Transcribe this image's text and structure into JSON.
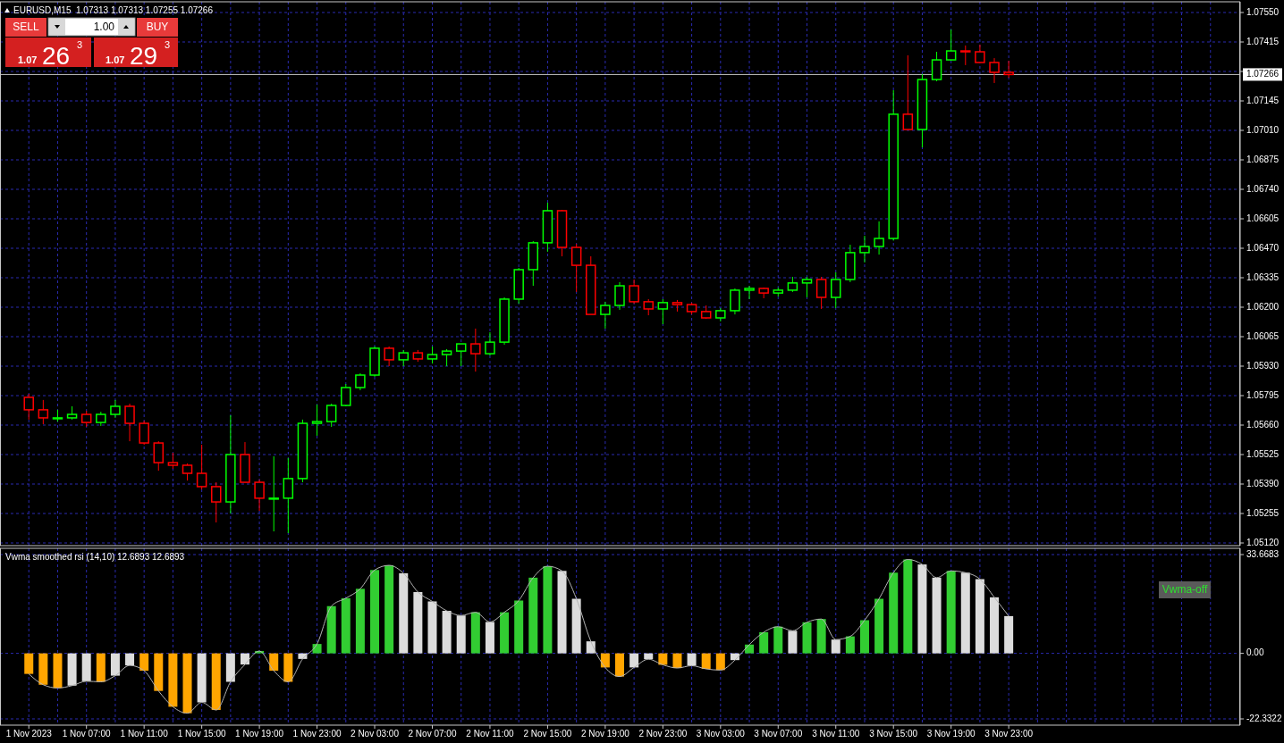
{
  "chart_data": [
    {
      "type": "candlestick",
      "title": "EURUSD,M15  1.07313 1.07313 1.07255 1.07266",
      "tick_labels": "y",
      "grid": true,
      "annotations": [
        "SELL",
        "1.00",
        "BUY",
        "1.07",
        "26",
        "3",
        "1.07",
        "29",
        "3"
      ],
      "xlim": [
        "2023-11-01T01:00",
        "2023-11-04T15:00"
      ],
      "xticks": [
        "2023-11-01T03:00",
        "2023-11-01T05:00",
        "2023-11-01T07:00",
        "2023-11-01T09:00",
        "2023-11-01T11:00",
        "2023-11-01T13:00",
        "2023-11-01T15:00",
        "2023-11-01T17:00",
        "2023-11-01T19:00",
        "2023-11-01T21:00",
        "2023-11-01T23:00",
        "2023-11-02T01:00",
        "2023-11-02T03:00",
        "2023-11-02T05:00",
        "2023-11-02T07:00",
        "2023-11-02T09:00",
        "2023-11-02T11:00",
        "2023-11-02T13:00",
        "2023-11-02T15:00",
        "2023-11-02T17:00",
        "2023-11-02T19:00",
        "2023-11-02T21:00",
        "2023-11-02T23:00",
        "2023-11-03T01:00",
        "2023-11-03T03:00",
        "2023-11-03T05:00",
        "2023-11-03T07:00",
        "2023-11-03T09:00",
        "2023-11-03T11:00",
        "2023-11-03T13:00",
        "2023-11-03T15:00",
        "2023-11-03T17:00",
        "2023-11-03T19:00",
        "2023-11-03T21:00",
        "2023-11-03T23:00",
        "2023-11-04T01:00",
        "2023-11-04T03:00",
        "2023-11-04T05:00",
        "2023-11-04T07:00",
        "2023-11-04T09:00",
        "2023-11-04T11:00",
        "2023-11-04T13:00"
      ],
      "ylim": [
        1.0512,
        1.0755
      ],
      "yticks": [
        {
          "value": 1.0512,
          "label": "1.05120"
        },
        {
          "value": 1.05255,
          "label": "1.05255"
        },
        {
          "value": 1.0539,
          "label": "1.05390"
        },
        {
          "value": 1.05525,
          "label": "1.05525"
        },
        {
          "value": 1.0566,
          "label": "1.05660"
        },
        {
          "value": 1.05795,
          "label": "1.05795"
        },
        {
          "value": 1.0593,
          "label": "1.05930"
        },
        {
          "value": 1.06065,
          "label": "1.06065"
        },
        {
          "value": 1.062,
          "label": "1.06200"
        },
        {
          "value": 1.06335,
          "label": "1.06335"
        },
        {
          "value": 1.0647,
          "label": "1.06470"
        },
        {
          "value": 1.06605,
          "label": "1.06605"
        },
        {
          "value": 1.0674,
          "label": "1.06740"
        },
        {
          "value": 1.06875,
          "label": "1.06875"
        },
        {
          "value": 1.0701,
          "label": "1.07010"
        },
        {
          "value": 1.07145,
          "label": "1.07145"
        },
        {
          "value": 1.0728,
          "label": null
        },
        {
          "value": 1.07415,
          "label": "1.07415"
        },
        {
          "value": 1.0755,
          "label": "1.07550"
        }
      ],
      "ref_lines": [
        {
          "axis": "y",
          "value": 1.07266,
          "label": "1.07266",
          "color": "#c0c0c0"
        }
      ],
      "x": [
        "2023-11-01T03:00",
        "2023-11-01T04:00",
        "2023-11-01T05:00",
        "2023-11-01T06:00",
        "2023-11-01T07:00",
        "2023-11-01T08:00",
        "2023-11-01T09:00",
        "2023-11-01T10:00",
        "2023-11-01T11:00",
        "2023-11-01T12:00",
        "2023-11-01T13:00",
        "2023-11-01T14:00",
        "2023-11-01T15:00",
        "2023-11-01T16:00",
        "2023-11-01T17:00",
        "2023-11-01T18:00",
        "2023-11-01T19:00",
        "2023-11-01T20:00",
        "2023-11-01T21:00",
        "2023-11-01T22:00",
        "2023-11-01T23:00",
        "2023-11-02T00:00",
        "2023-11-02T01:00",
        "2023-11-02T02:00",
        "2023-11-02T03:00",
        "2023-11-02T04:00",
        "2023-11-02T05:00",
        "2023-11-02T06:00",
        "2023-11-02T07:00",
        "2023-11-02T08:00",
        "2023-11-02T09:00",
        "2023-11-02T10:00",
        "2023-11-02T11:00",
        "2023-11-02T12:00",
        "2023-11-02T13:00",
        "2023-11-02T14:00",
        "2023-11-02T15:00",
        "2023-11-02T16:00",
        "2023-11-02T17:00",
        "2023-11-02T18:00",
        "2023-11-02T19:00",
        "2023-11-02T20:00",
        "2023-11-02T21:00",
        "2023-11-02T22:00",
        "2023-11-02T23:00",
        "2023-11-03T00:00",
        "2023-11-03T01:00",
        "2023-11-03T02:00",
        "2023-11-03T03:00",
        "2023-11-03T04:00",
        "2023-11-03T05:00",
        "2023-11-03T06:00",
        "2023-11-03T07:00",
        "2023-11-03T08:00",
        "2023-11-03T09:00",
        "2023-11-03T10:00",
        "2023-11-03T11:00",
        "2023-11-03T12:00",
        "2023-11-03T13:00",
        "2023-11-03T14:00",
        "2023-11-03T15:00",
        "2023-11-03T16:00",
        "2023-11-03T17:00",
        "2023-11-03T18:00",
        "2023-11-03T19:00",
        "2023-11-03T20:00",
        "2023-11-03T21:00",
        "2023-11-03T22:00",
        "2023-11-03T23:00"
      ],
      "ohlc": [
        [
          1.05787,
          1.05803,
          1.05685,
          1.0573
        ],
        [
          1.0573,
          1.05775,
          1.05664,
          1.05693
        ],
        [
          1.05693,
          1.0573,
          1.05676,
          1.05693
        ],
        [
          1.05693,
          1.05746,
          1.05685,
          1.05709
        ],
        [
          1.05709,
          1.05725,
          1.05652,
          1.05672
        ],
        [
          1.05672,
          1.05721,
          1.05656,
          1.05709
        ],
        [
          1.05709,
          1.05775,
          1.05693,
          1.05746
        ],
        [
          1.05746,
          1.05758,
          1.05586,
          1.05668
        ],
        [
          1.05668,
          1.0568,
          1.0557,
          1.05578
        ],
        [
          1.05578,
          1.05586,
          1.05451,
          1.05488
        ],
        [
          1.05488,
          1.05533,
          1.0546,
          1.05476
        ],
        [
          1.05476,
          1.05484,
          1.05406,
          1.05439
        ],
        [
          1.05439,
          1.0557,
          1.05365,
          1.05378
        ],
        [
          1.05378,
          1.05398,
          1.05214,
          1.05308
        ],
        [
          1.05308,
          1.05705,
          1.05255,
          1.05525
        ],
        [
          1.05525,
          1.05582,
          1.05398,
          1.05398
        ],
        [
          1.05398,
          1.0541,
          1.05267,
          1.05325
        ],
        [
          1.05325,
          1.05517,
          1.05173,
          1.05325
        ],
        [
          1.05325,
          1.05509,
          1.05165,
          1.05415
        ],
        [
          1.05415,
          1.05685,
          1.05398,
          1.05668
        ],
        [
          1.05668,
          1.05754,
          1.05611,
          1.05676
        ],
        [
          1.05676,
          1.05758,
          1.05652,
          1.0575
        ],
        [
          1.0575,
          1.05848,
          1.05746,
          1.05832
        ],
        [
          1.05832,
          1.05897,
          1.0582,
          1.05889
        ],
        [
          1.05889,
          1.0602,
          1.05881,
          1.06012
        ],
        [
          1.06012,
          1.0602,
          1.0593,
          1.05959
        ],
        [
          1.05959,
          1.06004,
          1.0593,
          1.05991
        ],
        [
          1.05991,
          1.06004,
          1.0595,
          1.05963
        ],
        [
          1.05963,
          1.0602,
          1.05942,
          1.05983
        ],
        [
          1.05983,
          1.06008,
          1.0593,
          1.05999
        ],
        [
          1.05999,
          1.06032,
          1.0593,
          1.06032
        ],
        [
          1.06032,
          1.06102,
          1.05905,
          1.05987
        ],
        [
          1.05987,
          1.06085,
          1.05979,
          1.0604
        ],
        [
          1.0604,
          1.06245,
          1.06028,
          1.06237
        ],
        [
          1.06237,
          1.0638,
          1.06216,
          1.06372
        ],
        [
          1.06372,
          1.06503,
          1.06298,
          1.06495
        ],
        [
          1.06495,
          1.06679,
          1.06454,
          1.06642
        ],
        [
          1.06642,
          1.06646,
          1.06433,
          1.06474
        ],
        [
          1.06474,
          1.0649,
          1.0627,
          1.06392
        ],
        [
          1.06392,
          1.06433,
          1.06167,
          1.06167
        ],
        [
          1.06167,
          1.06225,
          1.06102,
          1.06208
        ],
        [
          1.06208,
          1.06315,
          1.06188,
          1.06298
        ],
        [
          1.06298,
          1.06327,
          1.06216,
          1.06225
        ],
        [
          1.06225,
          1.06237,
          1.06163,
          1.06192
        ],
        [
          1.06192,
          1.06237,
          1.06122,
          1.06221
        ],
        [
          1.06221,
          1.06233,
          1.0618,
          1.06212
        ],
        [
          1.06212,
          1.06221,
          1.06167,
          1.0618
        ],
        [
          1.0618,
          1.06208,
          1.06147,
          1.06151
        ],
        [
          1.06151,
          1.06196,
          1.06135,
          1.06184
        ],
        [
          1.06184,
          1.06286,
          1.06167,
          1.06278
        ],
        [
          1.06278,
          1.06298,
          1.06237,
          1.06286
        ],
        [
          1.06286,
          1.0629,
          1.06241,
          1.06265
        ],
        [
          1.06265,
          1.0629,
          1.06249,
          1.06278
        ],
        [
          1.06278,
          1.06339,
          1.0627,
          1.06311
        ],
        [
          1.06311,
          1.06339,
          1.06245,
          1.06327
        ],
        [
          1.06327,
          1.06339,
          1.06192,
          1.06245
        ],
        [
          1.06245,
          1.0636,
          1.06196,
          1.06327
        ],
        [
          1.06327,
          1.06486,
          1.06315,
          1.0645
        ],
        [
          1.0645,
          1.06527,
          1.06405,
          1.06478
        ],
        [
          1.06478,
          1.06593,
          1.06441,
          1.06515
        ],
        [
          1.06515,
          1.07194,
          1.06505,
          1.07084
        ],
        [
          1.07084,
          1.07354,
          1.07014,
          1.07014
        ],
        [
          1.07014,
          1.07268,
          1.06932,
          1.07243
        ],
        [
          1.07243,
          1.0737,
          1.07235,
          1.07333
        ],
        [
          1.07333,
          1.07472,
          1.07329,
          1.07374
        ],
        [
          1.07374,
          1.07399,
          1.07309,
          1.0737
        ],
        [
          1.0737,
          1.07403,
          1.07321,
          1.07321
        ],
        [
          1.07321,
          1.07341,
          1.07227,
          1.07276
        ],
        [
          1.07276,
          1.07329,
          1.07251,
          1.07266
        ]
      ],
      "colors": [
        "#ff0000",
        "#ff0000",
        "#00ff00",
        "#00ff00",
        "#ff0000",
        "#00ff00",
        "#00ff00",
        "#ff0000",
        "#ff0000",
        "#ff0000",
        "#ff0000",
        "#ff0000",
        "#ff0000",
        "#ff0000",
        "#00ff00",
        "#ff0000",
        "#ff0000",
        "#00ff00",
        "#00ff00",
        "#00ff00",
        "#00ff00",
        "#00ff00",
        "#00ff00",
        "#00ff00",
        "#00ff00",
        "#ff0000",
        "#00ff00",
        "#ff0000",
        "#00ff00",
        "#00ff00",
        "#00ff00",
        "#ff0000",
        "#00ff00",
        "#00ff00",
        "#00ff00",
        "#00ff00",
        "#00ff00",
        "#ff0000",
        "#ff0000",
        "#ff0000",
        "#00ff00",
        "#00ff00",
        "#ff0000",
        "#ff0000",
        "#00ff00",
        "#ff0000",
        "#ff0000",
        "#ff0000",
        "#00ff00",
        "#00ff00",
        "#00ff00",
        "#ff0000",
        "#00ff00",
        "#00ff00",
        "#00ff00",
        "#ff0000",
        "#00ff00",
        "#00ff00",
        "#00ff00",
        "#00ff00",
        "#00ff00",
        "#ff0000",
        "#00ff00",
        "#00ff00",
        "#00ff00",
        "#ff0000",
        "#ff0000",
        "#ff0000",
        "#ff0000"
      ]
    },
    {
      "type": "bar",
      "title": "Vwma smoothed rsi (14,10) 12.6893 12.6893",
      "grid": true,
      "annotations": [
        "Vwma-off"
      ],
      "xlim": [
        "2023-11-01T01:00",
        "2023-11-04T15:00"
      ],
      "xticks": [
        {
          "value": "2023-11-01T03:00",
          "label": "1 Nov 2023"
        },
        {
          "value": "2023-11-01T05:00",
          "label": null
        },
        {
          "value": "2023-11-01T07:00",
          "label": "1 Nov 07:00"
        },
        {
          "value": "2023-11-01T09:00",
          "label": null
        },
        {
          "value": "2023-11-01T11:00",
          "label": "1 Nov 11:00"
        },
        {
          "value": "2023-11-01T13:00",
          "label": null
        },
        {
          "value": "2023-11-01T15:00",
          "label": "1 Nov 15:00"
        },
        {
          "value": "2023-11-01T17:00",
          "label": null
        },
        {
          "value": "2023-11-01T19:00",
          "label": "1 Nov 19:00"
        },
        {
          "value": "2023-11-01T21:00",
          "label": null
        },
        {
          "value": "2023-11-01T23:00",
          "label": "1 Nov 23:00"
        },
        {
          "value": "2023-11-02T01:00",
          "label": null
        },
        {
          "value": "2023-11-02T03:00",
          "label": "2 Nov 03:00"
        },
        {
          "value": "2023-11-02T05:00",
          "label": null
        },
        {
          "value": "2023-11-02T07:00",
          "label": "2 Nov 07:00"
        },
        {
          "value": "2023-11-02T09:00",
          "label": null
        },
        {
          "value": "2023-11-02T11:00",
          "label": "2 Nov 11:00"
        },
        {
          "value": "2023-11-02T13:00",
          "label": null
        },
        {
          "value": "2023-11-02T15:00",
          "label": "2 Nov 15:00"
        },
        {
          "value": "2023-11-02T17:00",
          "label": null
        },
        {
          "value": "2023-11-02T19:00",
          "label": "2 Nov 19:00"
        },
        {
          "value": "2023-11-02T21:00",
          "label": null
        },
        {
          "value": "2023-11-02T23:00",
          "label": "2 Nov 23:00"
        },
        {
          "value": "2023-11-03T01:00",
          "label": null
        },
        {
          "value": "2023-11-03T03:00",
          "label": "3 Nov 03:00"
        },
        {
          "value": "2023-11-03T05:00",
          "label": null
        },
        {
          "value": "2023-11-03T07:00",
          "label": "3 Nov 07:00"
        },
        {
          "value": "2023-11-03T09:00",
          "label": null
        },
        {
          "value": "2023-11-03T11:00",
          "label": "3 Nov 11:00"
        },
        {
          "value": "2023-11-03T13:00",
          "label": null
        },
        {
          "value": "2023-11-03T15:00",
          "label": "3 Nov 15:00"
        },
        {
          "value": "2023-11-03T17:00",
          "label": null
        },
        {
          "value": "2023-11-03T19:00",
          "label": "3 Nov 19:00"
        },
        {
          "value": "2023-11-03T21:00",
          "label": null
        },
        {
          "value": "2023-11-03T23:00",
          "label": "3 Nov 23:00"
        },
        {
          "value": "2023-11-04T01:00",
          "label": null
        },
        {
          "value": "2023-11-04T03:00",
          "label": null
        },
        {
          "value": "2023-11-04T05:00",
          "label": null
        },
        {
          "value": "2023-11-04T07:00",
          "label": null
        },
        {
          "value": "2023-11-04T09:00",
          "label": null
        },
        {
          "value": "2023-11-04T11:00",
          "label": null
        },
        {
          "value": "2023-11-04T13:00",
          "label": null
        }
      ],
      "ylim": [
        -22.3322,
        33.6683
      ],
      "yticks": [
        -22.3322,
        {
          "value": 0,
          "label": "0.00"
        },
        33.6683
      ],
      "x": [
        "2023-11-01T03:00",
        "2023-11-01T04:00",
        "2023-11-01T05:00",
        "2023-11-01T06:00",
        "2023-11-01T07:00",
        "2023-11-01T08:00",
        "2023-11-01T09:00",
        "2023-11-01T10:00",
        "2023-11-01T11:00",
        "2023-11-01T12:00",
        "2023-11-01T13:00",
        "2023-11-01T14:00",
        "2023-11-01T15:00",
        "2023-11-01T16:00",
        "2023-11-01T17:00",
        "2023-11-01T18:00",
        "2023-11-01T19:00",
        "2023-11-01T20:00",
        "2023-11-01T21:00",
        "2023-11-01T22:00",
        "2023-11-01T23:00",
        "2023-11-02T00:00",
        "2023-11-02T01:00",
        "2023-11-02T02:00",
        "2023-11-02T03:00",
        "2023-11-02T04:00",
        "2023-11-02T05:00",
        "2023-11-02T06:00",
        "2023-11-02T07:00",
        "2023-11-02T08:00",
        "2023-11-02T09:00",
        "2023-11-02T10:00",
        "2023-11-02T11:00",
        "2023-11-02T12:00",
        "2023-11-02T13:00",
        "2023-11-02T14:00",
        "2023-11-02T15:00",
        "2023-11-02T16:00",
        "2023-11-02T17:00",
        "2023-11-02T18:00",
        "2023-11-02T19:00",
        "2023-11-02T20:00",
        "2023-11-02T21:00",
        "2023-11-02T22:00",
        "2023-11-02T23:00",
        "2023-11-03T00:00",
        "2023-11-03T01:00",
        "2023-11-03T02:00",
        "2023-11-03T03:00",
        "2023-11-03T04:00",
        "2023-11-03T05:00",
        "2023-11-03T06:00",
        "2023-11-03T07:00",
        "2023-11-03T08:00",
        "2023-11-03T09:00",
        "2023-11-03T10:00",
        "2023-11-03T11:00",
        "2023-11-03T12:00",
        "2023-11-03T13:00",
        "2023-11-03T14:00",
        "2023-11-03T15:00",
        "2023-11-03T16:00",
        "2023-11-03T17:00",
        "2023-11-03T18:00",
        "2023-11-03T19:00",
        "2023-11-03T20:00",
        "2023-11-03T21:00",
        "2023-11-03T22:00",
        "2023-11-03T23:00"
      ],
      "series": [
        {
          "type": "bar",
          "values": [
            -7.0,
            -10.7,
            -11.8,
            -11.0,
            -9.5,
            -9.7,
            -7.6,
            -4.1,
            -5.9,
            -12.8,
            -18.2,
            -20.4,
            -16.7,
            -19.3,
            -9.7,
            -3.8,
            0.8,
            -5.9,
            -9.7,
            -1.9,
            3.2,
            16.1,
            18.8,
            22.0,
            28.4,
            30.0,
            27.3,
            20.9,
            17.7,
            14.5,
            12.9,
            14.0,
            10.7,
            14.0,
            18.0,
            25.8,
            29.7,
            28.1,
            18.6,
            4.1,
            -4.8,
            -7.9,
            -4.8,
            -2.0,
            -3.9,
            -5.0,
            -4.2,
            -5.3,
            -5.7,
            -2.3,
            3.0,
            7.2,
            9.1,
            7.7,
            10.6,
            11.7,
            4.7,
            5.8,
            11.3,
            18.6,
            27.5,
            32.0,
            30.3,
            25.8,
            28.1,
            27.5,
            25.3,
            19.1,
            12.7
          ],
          "colors": [
            "#ffa500",
            "#ffa500",
            "#ffa500",
            "#dcdcdc",
            "#dcdcdc",
            "#ffa500",
            "#dcdcdc",
            "#dcdcdc",
            "#ffa500",
            "#ffa500",
            "#ffa500",
            "#ffa500",
            "#dcdcdc",
            "#ffa500",
            "#dcdcdc",
            "#dcdcdc",
            "#32cd32",
            "#ffa500",
            "#ffa500",
            "#dcdcdc",
            "#32cd32",
            "#32cd32",
            "#32cd32",
            "#32cd32",
            "#32cd32",
            "#32cd32",
            "#dcdcdc",
            "#dcdcdc",
            "#dcdcdc",
            "#dcdcdc",
            "#dcdcdc",
            "#32cd32",
            "#dcdcdc",
            "#32cd32",
            "#32cd32",
            "#32cd32",
            "#32cd32",
            "#dcdcdc",
            "#dcdcdc",
            "#dcdcdc",
            "#ffa500",
            "#ffa500",
            "#dcdcdc",
            "#dcdcdc",
            "#ffa500",
            "#ffa500",
            "#dcdcdc",
            "#ffa500",
            "#ffa500",
            "#dcdcdc",
            "#32cd32",
            "#32cd32",
            "#32cd32",
            "#dcdcdc",
            "#32cd32",
            "#32cd32",
            "#dcdcdc",
            "#32cd32",
            "#32cd32",
            "#32cd32",
            "#32cd32",
            "#32cd32",
            "#dcdcdc",
            "#dcdcdc",
            "#32cd32",
            "#dcdcdc",
            "#dcdcdc",
            "#dcdcdc",
            "#dcdcdc"
          ]
        },
        {
          "type": "line",
          "color": "#b4b4b4",
          "values": [
            -7.0,
            -10.7,
            -11.8,
            -11.0,
            -9.5,
            -9.7,
            -7.6,
            -4.1,
            -5.9,
            -12.8,
            -18.2,
            -20.4,
            -16.7,
            -19.3,
            -9.7,
            -3.8,
            0.8,
            -5.9,
            -9.7,
            -1.9,
            3.2,
            16.1,
            18.8,
            22.0,
            28.4,
            30.0,
            27.3,
            20.9,
            17.7,
            14.5,
            12.9,
            14.0,
            10.7,
            14.0,
            18.0,
            25.8,
            29.7,
            28.1,
            18.6,
            4.1,
            -4.8,
            -7.9,
            -4.8,
            -2.0,
            -3.9,
            -5.0,
            -4.2,
            -5.3,
            -5.7,
            -2.3,
            3.0,
            7.2,
            9.1,
            7.7,
            10.6,
            11.7,
            4.7,
            5.8,
            11.3,
            18.6,
            27.5,
            32.0,
            30.3,
            25.8,
            28.1,
            27.5,
            25.3,
            19.1,
            12.7
          ]
        }
      ]
    }
  ]
}
